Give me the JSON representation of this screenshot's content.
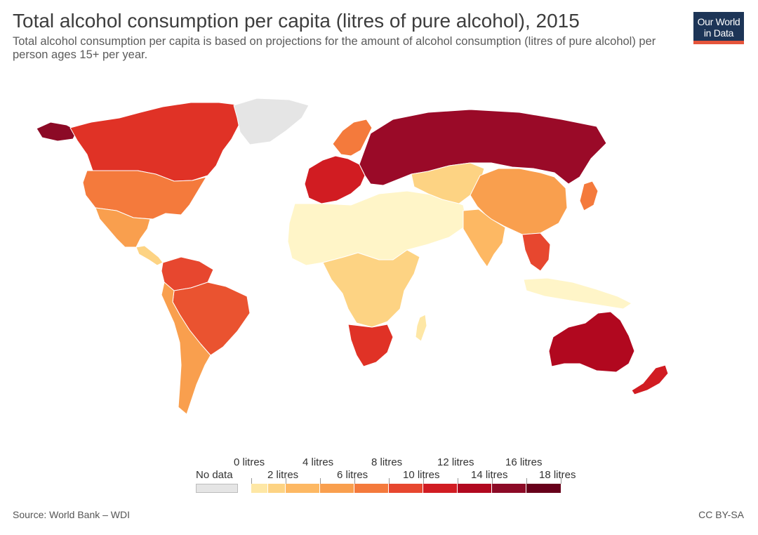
{
  "header": {
    "title": "Total alcohol consumption per capita (litres of pure alcohol), 2015",
    "subtitle": "Total alcohol consumption per capita is based on projections for the amount of alcohol consumption (litres of pure alcohol) per person ages 15+ per year."
  },
  "logo": {
    "line1": "Our World",
    "line2": "in Data"
  },
  "legend": {
    "no_data_label": "No data",
    "no_data_color": "#e5e5e5",
    "top_labels": [
      "0 litres",
      "4 litres",
      "8 litres",
      "12 litres",
      "16 litres"
    ],
    "bottom_labels": [
      "2 litres",
      "6 litres",
      "10 litres",
      "14 litres",
      "18 litres"
    ],
    "bin_colors": [
      "#fff5c8",
      "#fee7a5",
      "#fdd383",
      "#fdb863",
      "#f99f4e",
      "#f47a3c",
      "#e7472f",
      "#d11c22",
      "#b1081f",
      "#8c0a26",
      "#67001a"
    ]
  },
  "footer": {
    "source": "Source: World Bank – WDI",
    "license": "CC BY-SA"
  },
  "regions": [
    {
      "name": "alaska",
      "color": "#8c0a26"
    },
    {
      "name": "canada",
      "color": "#e03226"
    },
    {
      "name": "greenland",
      "color": "#e5e5e5"
    },
    {
      "name": "usa",
      "color": "#f47a3c"
    },
    {
      "name": "mexico",
      "color": "#f99f4e"
    },
    {
      "name": "central-america",
      "color": "#fdd383"
    },
    {
      "name": "south-america-north",
      "color": "#e7472f"
    },
    {
      "name": "brazil",
      "color": "#ea5330"
    },
    {
      "name": "south-america-south",
      "color": "#f99f4e"
    },
    {
      "name": "western-europe",
      "color": "#d11c22"
    },
    {
      "name": "scandinavia",
      "color": "#f47a3c"
    },
    {
      "name": "eastern-europe-russia",
      "color": "#9a0a28"
    },
    {
      "name": "north-africa-middle-east",
      "color": "#fff5c8"
    },
    {
      "name": "central-africa",
      "color": "#fdd383"
    },
    {
      "name": "southern-africa",
      "color": "#e03226"
    },
    {
      "name": "madagascar",
      "color": "#fee7a5"
    },
    {
      "name": "central-asia",
      "color": "#fdd383"
    },
    {
      "name": "china",
      "color": "#f99f4e"
    },
    {
      "name": "india",
      "color": "#fdb863"
    },
    {
      "name": "southeast-asia",
      "color": "#e7472f"
    },
    {
      "name": "japan",
      "color": "#f47a3c"
    },
    {
      "name": "indonesia",
      "color": "#fff5c8"
    },
    {
      "name": "australia",
      "color": "#b1081f"
    },
    {
      "name": "new-zealand",
      "color": "#d11c22"
    }
  ]
}
